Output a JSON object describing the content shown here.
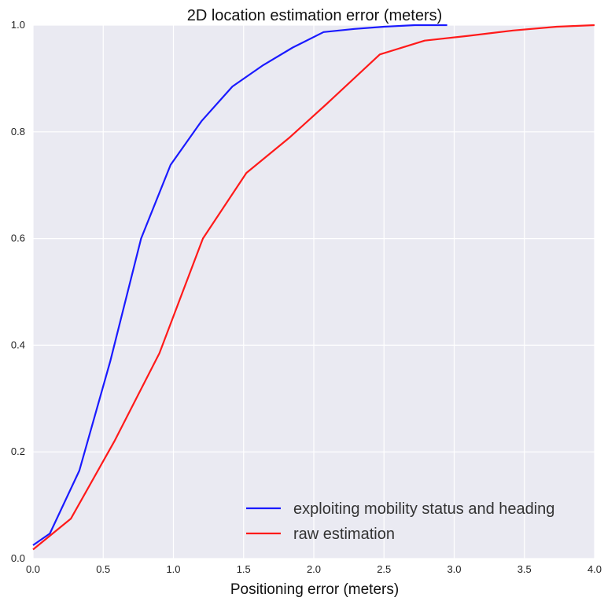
{
  "chart_data": {
    "type": "line",
    "title": "2D location estimation error (meters)",
    "xlabel": "Positioning error (meters)",
    "ylabel": "",
    "xlim": [
      0.0,
      4.0
    ],
    "ylim": [
      0.0,
      1.0
    ],
    "xticks": [
      "0.0",
      "0.5",
      "1.0",
      "1.5",
      "2.0",
      "2.5",
      "3.0",
      "3.5",
      "4.0"
    ],
    "yticks": [
      "0.0",
      "0.2",
      "0.4",
      "0.6",
      "0.8",
      "1.0"
    ],
    "grid": true,
    "legend_position": "bottom-right",
    "background_color": "#eaeaf2",
    "series": [
      {
        "name": "exploiting mobility status and heading",
        "color": "#1a1aff",
        "x": [
          0.0,
          0.12,
          0.33,
          0.55,
          0.77,
          0.98,
          1.2,
          1.42,
          1.64,
          1.85,
          2.07,
          2.29,
          2.5,
          2.72,
          2.95
        ],
        "y": [
          0.025,
          0.047,
          0.165,
          0.37,
          0.6,
          0.738,
          0.82,
          0.885,
          0.925,
          0.958,
          0.987,
          0.993,
          0.997,
          1.0,
          1.0
        ]
      },
      {
        "name": "raw estimation",
        "color": "#ff1a1a",
        "x": [
          0.0,
          0.27,
          0.58,
          0.9,
          1.21,
          1.52,
          1.83,
          2.09,
          2.47,
          2.79,
          3.1,
          3.42,
          3.73,
          4.0
        ],
        "y": [
          0.017,
          0.075,
          0.22,
          0.385,
          0.6,
          0.723,
          0.79,
          0.852,
          0.945,
          0.971,
          0.98,
          0.99,
          0.997,
          1.0
        ]
      }
    ]
  }
}
